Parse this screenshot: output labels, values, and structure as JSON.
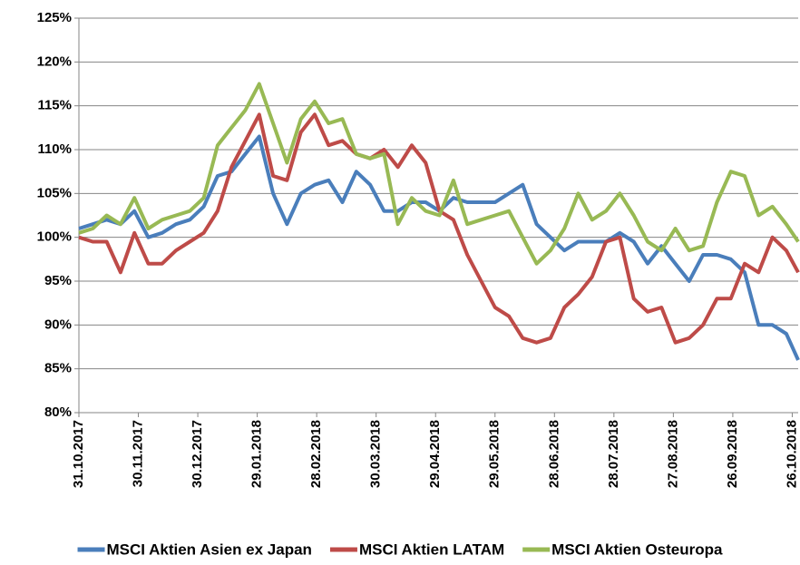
{
  "chart_data": {
    "type": "line",
    "x": [
      "31.10.2017",
      "07.11.2017",
      "14.11.2017",
      "21.11.2017",
      "28.11.2017",
      "05.12.2017",
      "12.12.2017",
      "19.12.2017",
      "26.12.2017",
      "02.01.2018",
      "09.01.2018",
      "16.01.2018",
      "23.01.2018",
      "30.01.2018",
      "06.02.2018",
      "13.02.2018",
      "20.02.2018",
      "27.02.2018",
      "06.03.2018",
      "13.03.2018",
      "20.03.2018",
      "27.03.2018",
      "03.04.2018",
      "10.04.2018",
      "17.04.2018",
      "24.04.2018",
      "01.05.2018",
      "08.05.2018",
      "15.05.2018",
      "22.05.2018",
      "29.05.2018",
      "05.06.2018",
      "12.06.2018",
      "19.06.2018",
      "26.06.2018",
      "03.07.2018",
      "10.07.2018",
      "17.07.2018",
      "24.07.2018",
      "31.07.2018",
      "07.08.2018",
      "14.08.2018",
      "21.08.2018",
      "28.08.2018",
      "04.09.2018",
      "11.09.2018",
      "18.09.2018",
      "25.09.2018",
      "02.10.2018",
      "09.10.2018",
      "16.10.2018",
      "23.10.2018",
      "29.10.2018"
    ],
    "series": [
      {
        "name": "MSCI Aktien Asien ex Japan",
        "color": "#4a7ebb",
        "values": [
          101,
          101.5,
          102,
          101.5,
          103,
          100,
          100.5,
          101.5,
          102,
          103.5,
          107,
          107.5,
          109.5,
          111.5,
          105,
          101.5,
          105,
          106,
          106.5,
          104,
          107.5,
          106,
          103,
          103,
          104,
          104,
          103,
          104.5,
          104,
          104,
          104,
          105,
          106,
          101.5,
          100,
          98.5,
          99.5,
          99.5,
          99.5,
          100.5,
          99.5,
          97,
          99,
          97,
          95,
          98,
          98,
          97.5,
          96,
          90,
          90,
          89,
          86
        ]
      },
      {
        "name": "MSCI Aktien LATAM",
        "color": "#be4b48",
        "values": [
          100,
          99.5,
          99.5,
          96,
          100.5,
          97,
          97,
          98.5,
          99.5,
          100.5,
          103,
          108,
          111,
          114,
          107,
          106.5,
          112,
          114,
          110.5,
          111,
          109.5,
          109,
          110,
          108,
          110.5,
          108.5,
          103,
          102,
          98,
          95,
          92,
          91,
          88.5,
          88,
          88.5,
          92,
          93.5,
          95.5,
          99.5,
          100,
          93,
          91.5,
          92,
          88,
          88.5,
          90,
          93,
          93,
          97,
          96,
          100,
          98.5,
          96
        ]
      },
      {
        "name": "MSCI Aktien Osteuropa",
        "color": "#98b954",
        "values": [
          100.5,
          101,
          102.5,
          101.5,
          104.5,
          101,
          102,
          102.5,
          103,
          104.5,
          110.5,
          112.5,
          114.5,
          117.5,
          113,
          108.5,
          113.5,
          115.5,
          113,
          113.5,
          109.5,
          109,
          109.5,
          101.5,
          104.5,
          103,
          102.5,
          106.5,
          101.5,
          102,
          102.5,
          103,
          100,
          97,
          98.5,
          101,
          105,
          102,
          103,
          105,
          102.5,
          99.5,
          98.5,
          101,
          98.5,
          99,
          104,
          107.5,
          107,
          102.5,
          103.5,
          101.5,
          99.5
        ]
      }
    ],
    "xlim": [
      "31.10.2017",
      "29.10.2018"
    ],
    "xticks": [
      "31.10.2017",
      "30.11.2017",
      "30.12.2017",
      "29.01.2018",
      "28.02.2018",
      "30.03.2018",
      "29.04.2018",
      "29.05.2018",
      "28.06.2018",
      "28.07.2018",
      "27.08.2018",
      "26.09.2018",
      "26.10.2018"
    ],
    "ylim": [
      80,
      125
    ],
    "yticks": [
      {
        "value": 80,
        "label": "80%"
      },
      {
        "value": 85,
        "label": "85%"
      },
      {
        "value": 90,
        "label": "90%"
      },
      {
        "value": 95,
        "label": "95%"
      },
      {
        "value": 100,
        "label": "100%"
      },
      {
        "value": 105,
        "label": "105%"
      },
      {
        "value": 110,
        "label": "110%"
      },
      {
        "value": 115,
        "label": "115%"
      },
      {
        "value": 120,
        "label": "120%"
      },
      {
        "value": 125,
        "label": "125%"
      }
    ],
    "grid": true,
    "legend": "bottom"
  }
}
